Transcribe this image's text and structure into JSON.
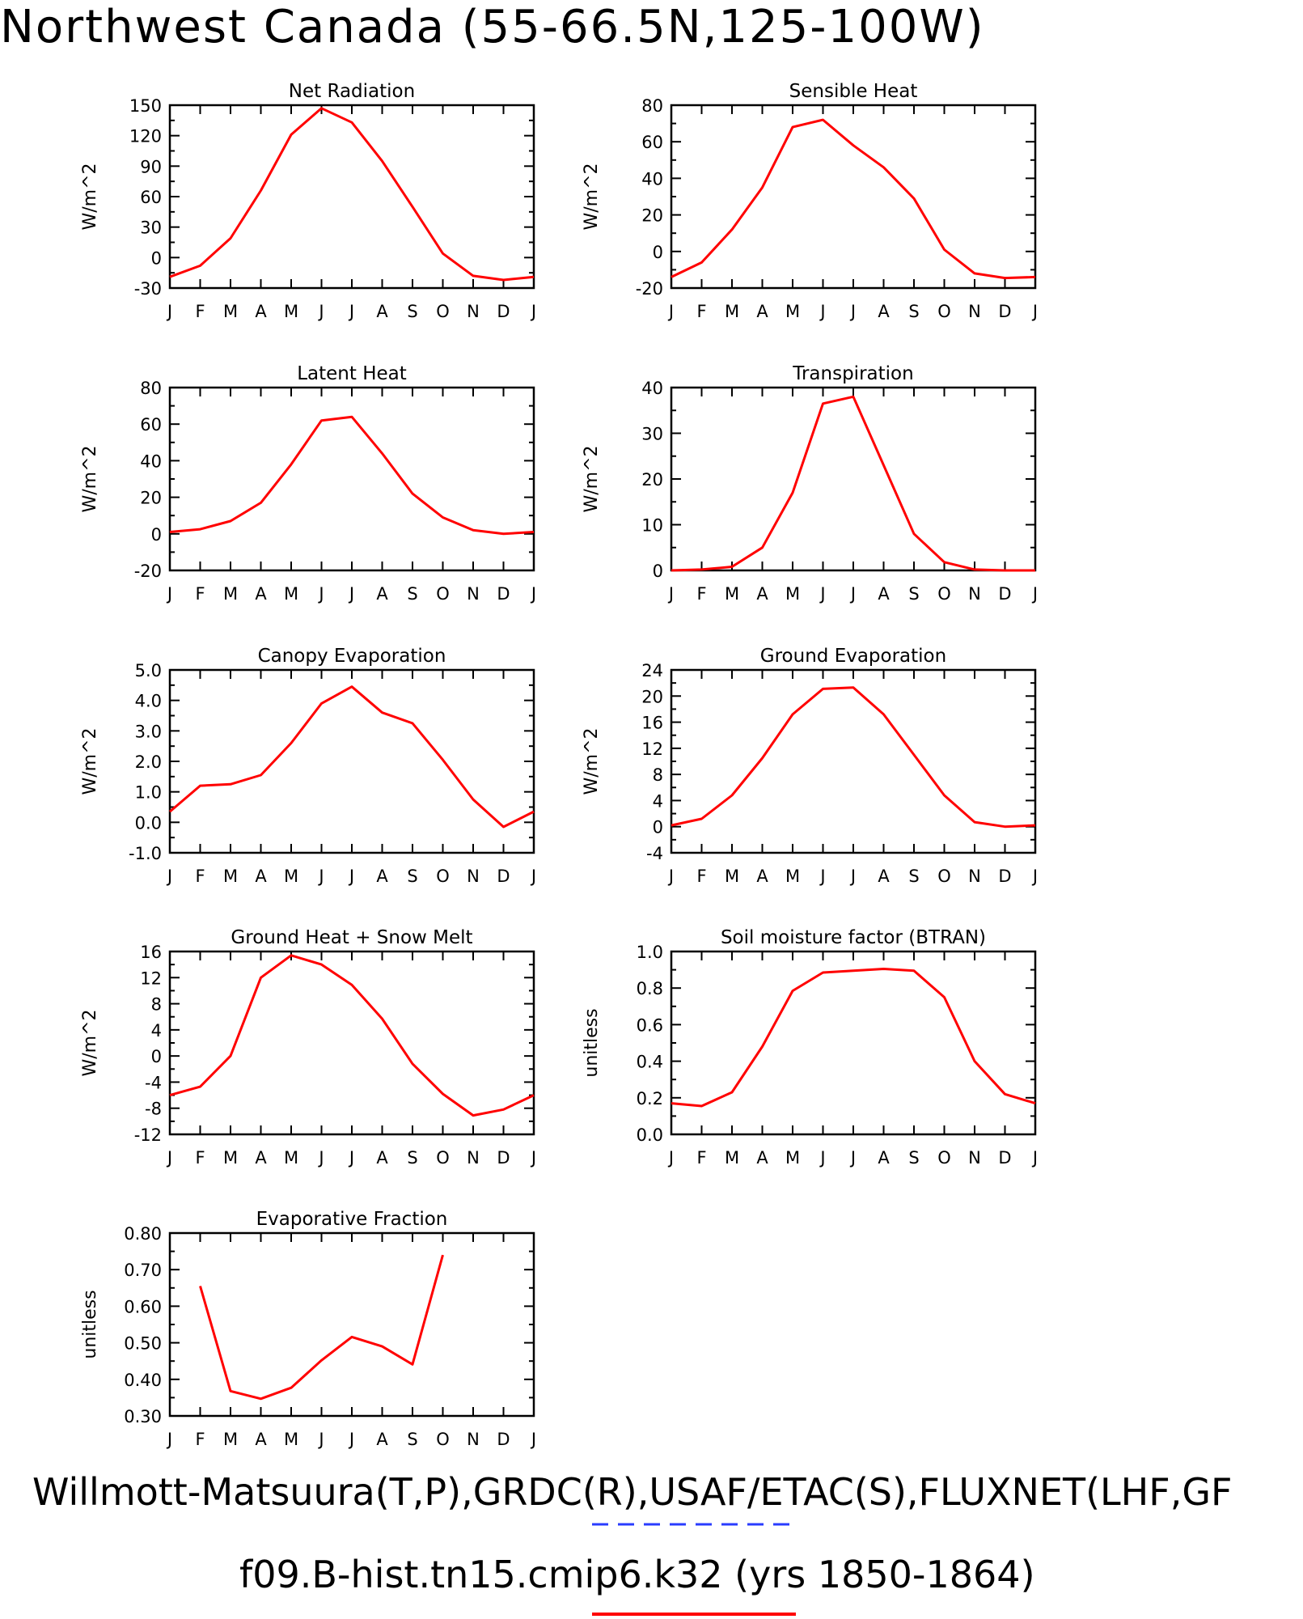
{
  "title": "Northwest Canada (55-66.5N,125-100W)",
  "footer": {
    "line1": "Willmott-Matsuura(T,P),GRDC(R),USAF/ETAC(S),FLUXNET(LHF,GF",
    "line2": "f09.B-hist.tn15.cmip6.k32 (yrs 1850-1864)"
  },
  "colors": {
    "series": "#ff0000",
    "legend_obs": "#2a3cff",
    "axis": "#000000"
  },
  "chart_data": [
    {
      "type": "line",
      "title": "Net Radiation",
      "ylabel": "W/m^2",
      "x": [
        "J",
        "F",
        "M",
        "A",
        "M",
        "J",
        "J",
        "A",
        "S",
        "O",
        "N",
        "D",
        "J"
      ],
      "ylim": [
        -30,
        150
      ],
      "yticks": [
        "-30",
        "0",
        "30",
        "60",
        "90",
        "120",
        "150"
      ],
      "yminor": 2,
      "series": [
        {
          "values": [
            -19,
            -8,
            19,
            66,
            121,
            147,
            133,
            95,
            50,
            4,
            -18,
            -22,
            -19
          ]
        }
      ]
    },
    {
      "type": "line",
      "title": "Sensible Heat",
      "ylabel": "W/m^2",
      "x": [
        "J",
        "F",
        "M",
        "A",
        "M",
        "J",
        "J",
        "A",
        "S",
        "O",
        "N",
        "D",
        "J"
      ],
      "ylim": [
        -20,
        80
      ],
      "yticks": [
        "-20",
        "0",
        "20",
        "40",
        "60",
        "80"
      ],
      "yminor": 2,
      "series": [
        {
          "values": [
            -14,
            -6,
            12,
            35,
            68,
            72,
            58,
            46,
            29,
            1,
            -12,
            -14.5,
            -14
          ]
        }
      ]
    },
    {
      "type": "line",
      "title": "Latent Heat",
      "ylabel": "W/m^2",
      "x": [
        "J",
        "F",
        "M",
        "A",
        "M",
        "J",
        "J",
        "A",
        "S",
        "O",
        "N",
        "D",
        "J"
      ],
      "ylim": [
        -20,
        80
      ],
      "yticks": [
        "-20",
        "0",
        "20",
        "40",
        "60",
        "80"
      ],
      "yminor": 2,
      "series": [
        {
          "values": [
            1,
            2.5,
            7,
            17,
            38,
            62,
            64,
            44,
            22,
            9,
            2,
            0,
            1
          ]
        }
      ]
    },
    {
      "type": "line",
      "title": "Transpiration",
      "ylabel": "W/m^2",
      "x": [
        "J",
        "F",
        "M",
        "A",
        "M",
        "J",
        "J",
        "A",
        "S",
        "O",
        "N",
        "D",
        "J"
      ],
      "ylim": [
        0,
        40
      ],
      "yticks": [
        "0",
        "10",
        "20",
        "30",
        "40"
      ],
      "yminor": 2,
      "series": [
        {
          "values": [
            0,
            0.2,
            0.8,
            5,
            17,
            36.5,
            38,
            23,
            8,
            1.8,
            0.2,
            0,
            0
          ]
        }
      ]
    },
    {
      "type": "line",
      "title": "Canopy Evaporation",
      "ylabel": "W/m^2",
      "x": [
        "J",
        "F",
        "M",
        "A",
        "M",
        "J",
        "J",
        "A",
        "S",
        "O",
        "N",
        "D",
        "J"
      ],
      "ylim": [
        -1,
        5
      ],
      "yticks": [
        "-1.0",
        "0.0",
        "1.0",
        "2.0",
        "3.0",
        "4.0",
        "5.0"
      ],
      "yminor": 2,
      "series": [
        {
          "values": [
            0.35,
            1.2,
            1.25,
            1.55,
            2.6,
            3.9,
            4.45,
            3.6,
            3.25,
            2.05,
            0.75,
            -0.15,
            0.35
          ]
        }
      ]
    },
    {
      "type": "line",
      "title": "Ground Evaporation",
      "ylabel": "W/m^2",
      "x": [
        "J",
        "F",
        "M",
        "A",
        "M",
        "J",
        "J",
        "A",
        "S",
        "O",
        "N",
        "D",
        "J"
      ],
      "ylim": [
        -4,
        24
      ],
      "yticks": [
        "-4",
        "0",
        "4",
        "8",
        "12",
        "16",
        "20",
        "24"
      ],
      "yminor": 2,
      "series": [
        {
          "values": [
            0.2,
            1.2,
            4.8,
            10.5,
            17.2,
            21.1,
            21.3,
            17.2,
            11,
            4.8,
            0.7,
            0,
            0.2
          ]
        }
      ]
    },
    {
      "type": "line",
      "title": "Ground Heat + Snow Melt",
      "ylabel": "W/m^2",
      "x": [
        "J",
        "F",
        "M",
        "A",
        "M",
        "J",
        "J",
        "A",
        "S",
        "O",
        "N",
        "D",
        "J"
      ],
      "ylim": [
        -12,
        16
      ],
      "yticks": [
        "-12",
        "-8",
        "-4",
        "0",
        "4",
        "8",
        "12",
        "16"
      ],
      "yminor": 2,
      "series": [
        {
          "values": [
            -6,
            -4.7,
            0,
            12,
            15.4,
            14,
            10.9,
            5.7,
            -1.2,
            -5.8,
            -9.1,
            -8.2,
            -6
          ]
        }
      ]
    },
    {
      "type": "line",
      "title": "Soil moisture factor (BTRAN)",
      "ylabel": "unitless",
      "x": [
        "J",
        "F",
        "M",
        "A",
        "M",
        "J",
        "J",
        "A",
        "S",
        "O",
        "N",
        "D",
        "J"
      ],
      "ylim": [
        0,
        1
      ],
      "yticks": [
        "0.0",
        "0.2",
        "0.4",
        "0.6",
        "0.8",
        "1.0"
      ],
      "yminor": 2,
      "series": [
        {
          "values": [
            0.17,
            0.155,
            0.23,
            0.48,
            0.785,
            0.885,
            0.895,
            0.905,
            0.895,
            0.75,
            0.4,
            0.22,
            0.17
          ]
        }
      ]
    },
    {
      "type": "line",
      "title": "Evaporative Fraction",
      "ylabel": "unitless",
      "x": [
        "J",
        "F",
        "M",
        "A",
        "M",
        "J",
        "J",
        "A",
        "S",
        "O",
        "N",
        "D",
        "J"
      ],
      "ylim": [
        0.3,
        0.8
      ],
      "yticks": [
        "0.30",
        "0.40",
        "0.50",
        "0.60",
        "0.70",
        "0.80"
      ],
      "yminor": 2,
      "series": [
        {
          "values": [
            null,
            0.655,
            0.368,
            0.347,
            0.377,
            0.452,
            0.516,
            0.49,
            0.441,
            0.74,
            null,
            null,
            null
          ]
        }
      ]
    }
  ]
}
